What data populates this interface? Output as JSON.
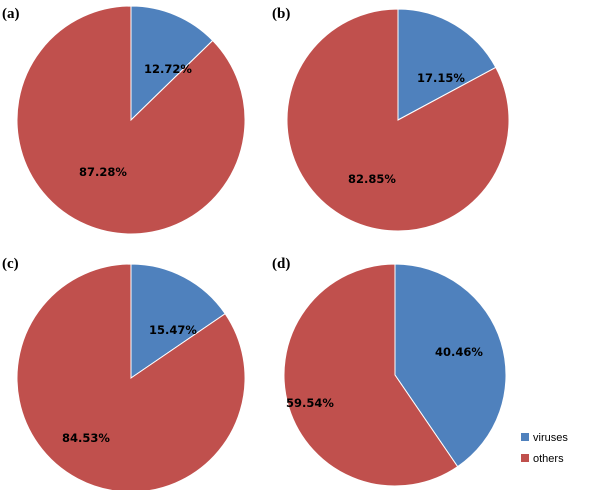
{
  "legend": {
    "items": [
      {
        "label": "viruses",
        "color": "#4f81bd"
      },
      {
        "label": "others",
        "color": "#c0504d"
      }
    ]
  },
  "chart_data": [
    {
      "type": "pie",
      "panel": "(a)",
      "categories": [
        "viruses",
        "others"
      ],
      "values": [
        12.72,
        87.28
      ],
      "value_labels": [
        "12.72%",
        "87.28%"
      ],
      "colors": [
        "#4f81bd",
        "#c0504d"
      ],
      "legend_position": "bottom-right"
    },
    {
      "type": "pie",
      "panel": "(b)",
      "categories": [
        "viruses",
        "others"
      ],
      "values": [
        17.15,
        82.85
      ],
      "value_labels": [
        "17.15%",
        "82.85%"
      ],
      "colors": [
        "#4f81bd",
        "#c0504d"
      ],
      "legend_position": "bottom-right"
    },
    {
      "type": "pie",
      "panel": "(c)",
      "categories": [
        "viruses",
        "others"
      ],
      "values": [
        15.47,
        84.53
      ],
      "value_labels": [
        "15.47%",
        "84.53%"
      ],
      "colors": [
        "#4f81bd",
        "#c0504d"
      ],
      "legend_position": "bottom-right"
    },
    {
      "type": "pie",
      "panel": "(d)",
      "categories": [
        "viruses",
        "others"
      ],
      "values": [
        40.46,
        59.54
      ],
      "value_labels": [
        "40.46%",
        "59.54%"
      ],
      "colors": [
        "#4f81bd",
        "#c0504d"
      ],
      "legend_position": "bottom-right"
    }
  ]
}
